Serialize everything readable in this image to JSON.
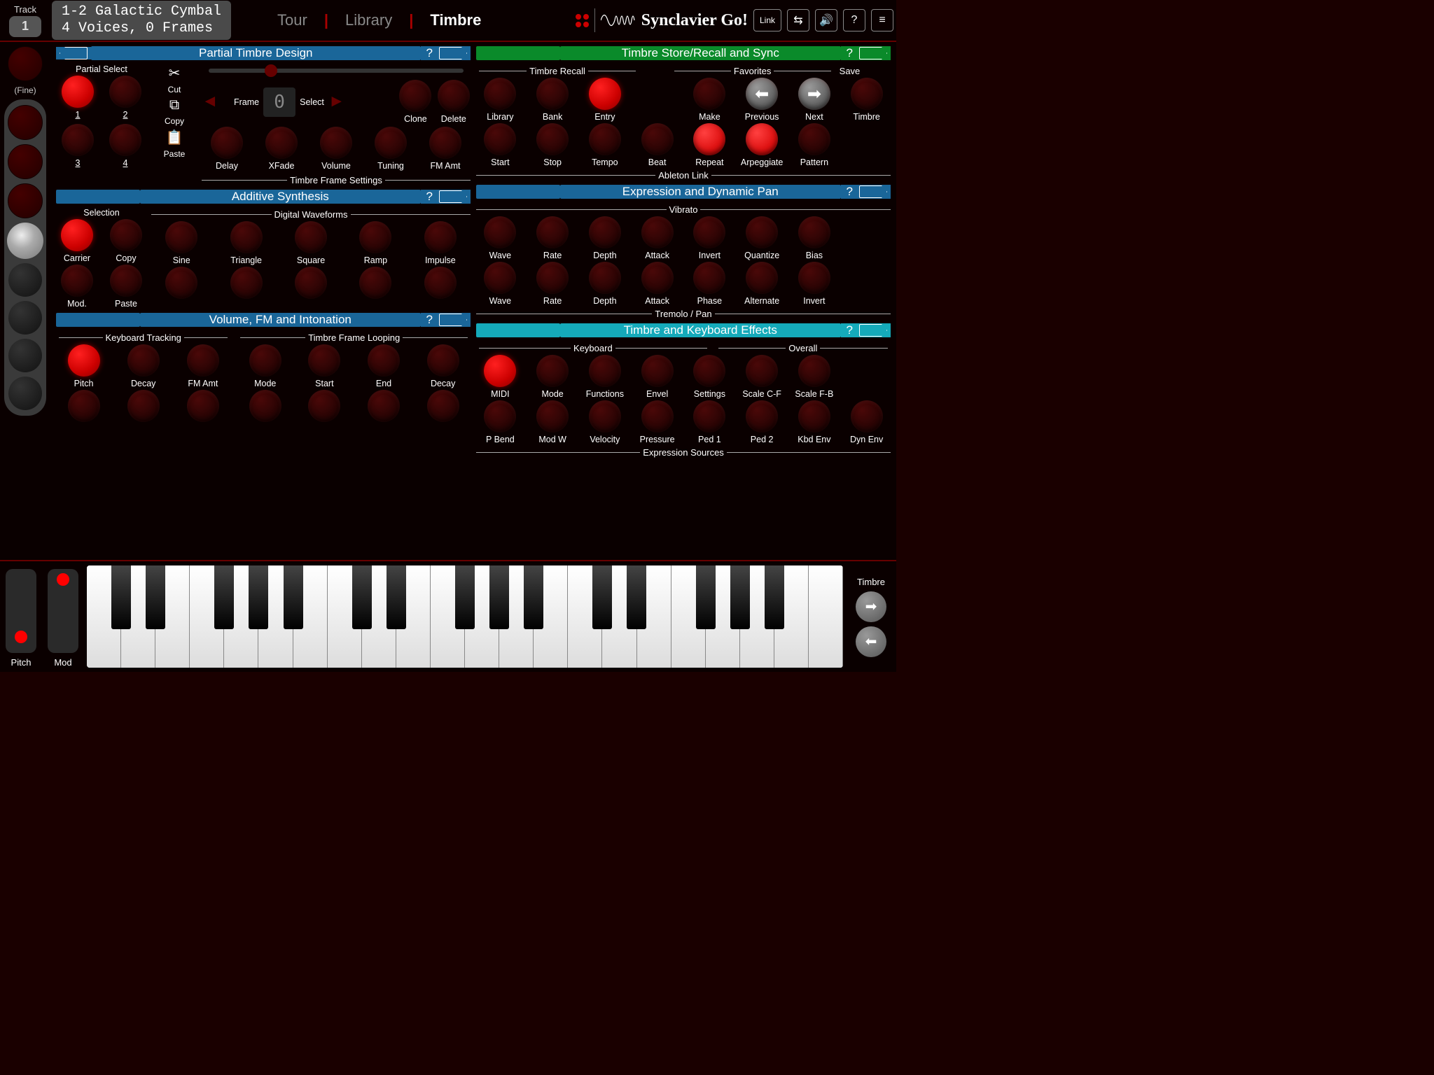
{
  "track": {
    "label": "Track",
    "number": "1"
  },
  "title": {
    "line1": "1-2 Galactic Cymbal",
    "line2": "4 Voices, 0 Frames"
  },
  "tabs": {
    "tour": "Tour",
    "library": "Library",
    "timbre": "Timbre"
  },
  "brand": "Synclavier Go!",
  "topbtns": {
    "link": "Link",
    "swap": "⇆",
    "sound": "🔊",
    "help": "?",
    "menu": "≡"
  },
  "fine": "(Fine)",
  "sections": {
    "partial": "Partial Timbre Design",
    "additive": "Additive Synthesis",
    "volume": "Volume, FM and Intonation",
    "store": "Timbre Store/Recall and Sync",
    "expression": "Expression and Dynamic Pan",
    "effects": "Timbre and Keyboard Effects"
  },
  "partial": {
    "select_label": "Partial Select",
    "nums": [
      "1",
      "2",
      "3",
      "4"
    ],
    "tools": {
      "cut": "Cut",
      "copy": "Copy",
      "paste": "Paste"
    },
    "frame": "Frame",
    "select": "Select",
    "frame_val": "0",
    "clone": "Clone",
    "delete": "Delete",
    "settings_label": "Timbre Frame Settings",
    "settings": [
      "Delay",
      "XFade",
      "Volume",
      "Tuning",
      "FM Amt"
    ]
  },
  "additive": {
    "selection": "Selection",
    "carrier": "Carrier",
    "mod": "Mod.",
    "copy": "Copy",
    "paste": "Paste",
    "wave_label": "Digital Waveforms",
    "waves": [
      "Sine",
      "Triangle",
      "Square",
      "Ramp",
      "Impulse"
    ]
  },
  "volume": {
    "kt_label": "Keyboard Tracking",
    "kt": [
      "Pitch",
      "Decay",
      "FM Amt"
    ],
    "tfl_label": "Timbre Frame Looping",
    "tfl": [
      "Mode",
      "Start",
      "End",
      "Decay"
    ]
  },
  "store": {
    "recall_label": "Timbre Recall",
    "fav_label": "Favorites",
    "save_label": "Save",
    "row1": [
      "Library",
      "Bank",
      "Entry"
    ],
    "fav": [
      "Make",
      "Previous",
      "Next"
    ],
    "save": "Timbre",
    "link_label": "Ableton Link",
    "row2": [
      "Start",
      "Stop",
      "Tempo",
      "Beat",
      "Repeat",
      "Arpeggiate",
      "Pattern"
    ]
  },
  "expr": {
    "vib_label": "Vibrato",
    "vib": [
      "Wave",
      "Rate",
      "Depth",
      "Attack",
      "Invert",
      "Quantize",
      "Bias"
    ],
    "trem_label": "Tremolo / Pan",
    "trem": [
      "Wave",
      "Rate",
      "Depth",
      "Attack",
      "Phase",
      "Alternate",
      "Invert"
    ]
  },
  "fx": {
    "kb_label": "Keyboard",
    "ov_label": "Overall",
    "row1a": [
      "MIDI",
      "Mode",
      "Functions",
      "Envel"
    ],
    "row1b": [
      "Settings",
      "Scale C-F",
      "Scale F-B"
    ],
    "es_label": "Expression Sources",
    "row2": [
      "P Bend",
      "Mod W",
      "Velocity",
      "Pressure",
      "Ped 1",
      "Ped 2",
      "Kbd Env",
      "Dyn Env"
    ]
  },
  "wheels": {
    "pitch": "Pitch",
    "mod": "Mod"
  },
  "kbright": "Timbre"
}
